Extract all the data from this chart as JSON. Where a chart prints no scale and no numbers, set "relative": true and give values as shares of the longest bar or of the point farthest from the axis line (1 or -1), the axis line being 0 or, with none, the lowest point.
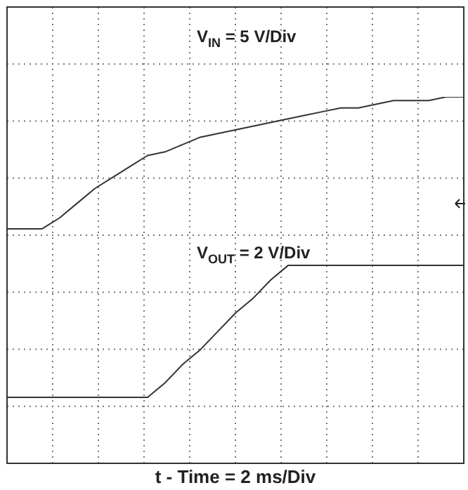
{
  "chart_data": {
    "type": "line",
    "relative": true,
    "xlabel": "t - Time = 2 ms/Div",
    "grid": true,
    "legend": false,
    "marker": "none",
    "line_style": "solid",
    "annotations": [
      "V$_{IN}$ = 5 V/Div",
      "V$_{OUT}$ = 2 V/Div"
    ],
    "categories": [
      null,
      null,
      null,
      null,
      null,
      null,
      null,
      null,
      null,
      null,
      null,
      null,
      null,
      null,
      null,
      null,
      null,
      null,
      null,
      null,
      null,
      null,
      null,
      null,
      null,
      null,
      null
    ],
    "series": [
      {
        "color": "#333333",
        "values": [
          0.64,
          0.64,
          0.64,
          0.67,
          0.71,
          0.75,
          0.78,
          0.81,
          0.84,
          0.85,
          0.87,
          0.89,
          0.9,
          0.91,
          0.92,
          0.93,
          0.94,
          0.95,
          0.96,
          0.97,
          0.97,
          0.98,
          0.99,
          0.99,
          0.99,
          1.0,
          1.0
        ]
      },
      {
        "color": "#333333",
        "values": [
          0.18,
          0.18,
          0.18,
          0.18,
          0.18,
          0.18,
          0.18,
          0.18,
          0.18,
          0.22,
          0.27,
          0.31,
          0.36,
          0.41,
          0.45,
          0.5,
          0.54,
          0.54,
          0.54,
          0.54,
          0.54,
          0.54,
          0.54,
          0.54,
          0.54,
          0.54,
          0.54
        ]
      }
    ]
  }
}
